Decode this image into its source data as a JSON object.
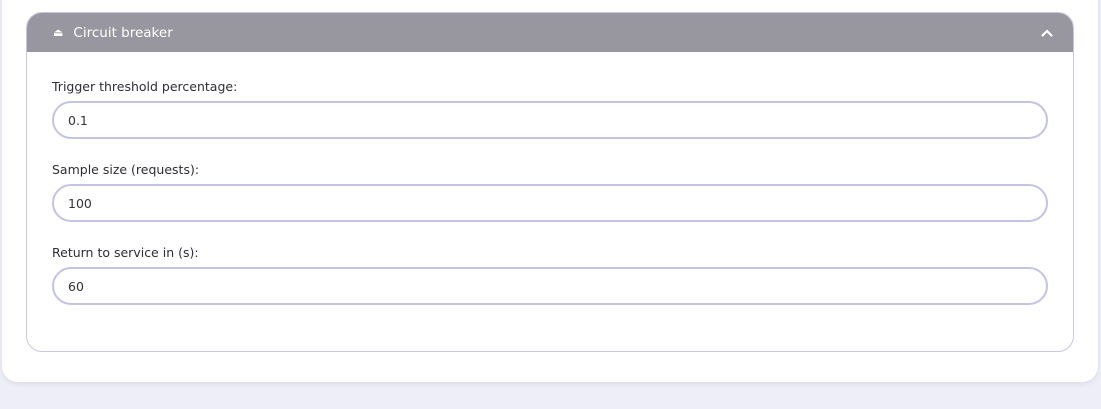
{
  "panel": {
    "title": "Circuit breaker",
    "title_icon": "eject-icon",
    "toggle_icon": "chevron-up-icon"
  },
  "fields": [
    {
      "label": "Trigger threshold percentage:",
      "value": "0.1"
    },
    {
      "label": "Sample size (requests):",
      "value": "100"
    },
    {
      "label": "Return to service in (s):",
      "value": "60"
    }
  ]
}
